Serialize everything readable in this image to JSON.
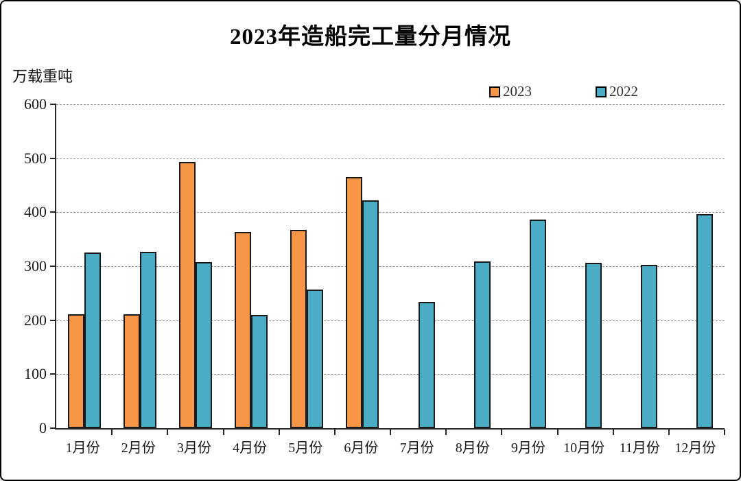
{
  "page": {
    "background": "#ffffff",
    "frame_border_color": "#000000"
  },
  "header": {
    "title": "2023年造船完工量分月情况",
    "unit_label": "万载重吨"
  },
  "legend": {
    "items": [
      {
        "label": "2023",
        "color": "#F79646"
      },
      {
        "label": "2022",
        "color": "#4BACC6"
      }
    ]
  },
  "chart_data": {
    "type": "bar",
    "title": "2023年造船完工量分月情况",
    "xlabel": "",
    "ylabel": "万载重吨",
    "categories": [
      "1月份",
      "2月份",
      "3月份",
      "4月份",
      "5月份",
      "6月份",
      "7月份",
      "8月份",
      "9月份",
      "10月份",
      "11月份",
      "12月份"
    ],
    "series": [
      {
        "name": "2023",
        "color": "#F79646",
        "values": [
          211,
          211,
          493,
          363,
          367,
          465,
          null,
          null,
          null,
          null,
          null,
          null
        ]
      },
      {
        "name": "2022",
        "color": "#4BACC6",
        "values": [
          325,
          327,
          308,
          210,
          257,
          422,
          234,
          309,
          386,
          306,
          302,
          396
        ]
      }
    ],
    "ylim": [
      0,
      600
    ],
    "yticks": [
      0,
      100,
      200,
      300,
      400,
      500,
      600
    ],
    "grid": "horizontal dashed",
    "legend_position": "top-right",
    "bar_border_color": "#1a1a1a",
    "axis_color": "#262626",
    "gridline_color": "#8c8c8c"
  }
}
